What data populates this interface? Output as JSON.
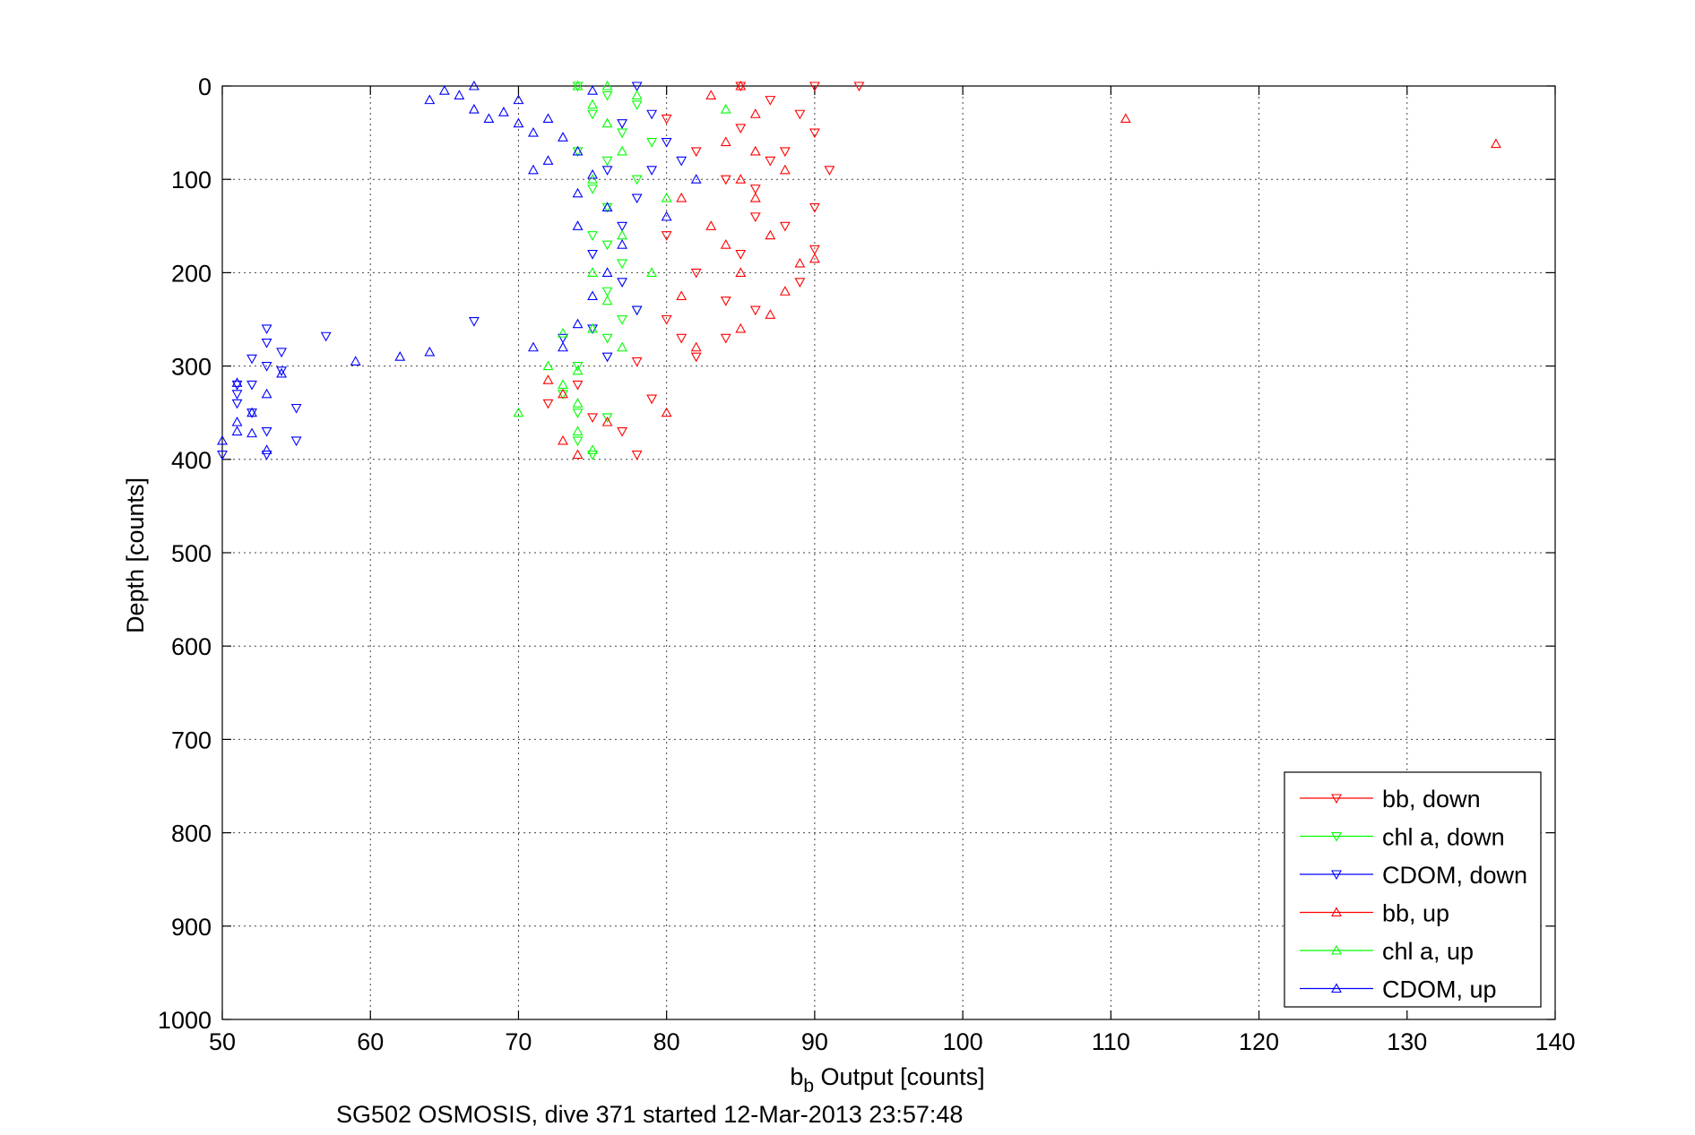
{
  "chart_data": {
    "type": "scatter",
    "title": "",
    "xlabel_main": "b",
    "xlabel_sub": "b",
    "xlabel_rest": " Output [counts]",
    "ylabel": "Depth [counts]",
    "caption": "SG502 OSMOSIS, dive 371 started 12-Mar-2013 23:57:48",
    "xlim": [
      50,
      140
    ],
    "ylim": [
      0,
      1000
    ],
    "y_reversed": true,
    "grid": true,
    "legend_position": "bottom-right",
    "x_ticks": [
      50,
      60,
      70,
      80,
      90,
      100,
      110,
      120,
      130,
      140
    ],
    "y_ticks": [
      0,
      100,
      200,
      300,
      400,
      500,
      600,
      700,
      800,
      900,
      1000
    ],
    "series": [
      {
        "name": "bb, down",
        "marker": "triangle-down",
        "color": "#ff0000",
        "points": [
          [
            85,
            0
          ],
          [
            87,
            15
          ],
          [
            89,
            30
          ],
          [
            90,
            50
          ],
          [
            88,
            70
          ],
          [
            91,
            90
          ],
          [
            86,
            110
          ],
          [
            90,
            130
          ],
          [
            88,
            150
          ],
          [
            85,
            180
          ],
          [
            90,
            175
          ],
          [
            89,
            210
          ],
          [
            86,
            240
          ],
          [
            84,
            270
          ],
          [
            82,
            290
          ],
          [
            78,
            295
          ],
          [
            74,
            320
          ],
          [
            72,
            340
          ],
          [
            79,
            335
          ],
          [
            75,
            355
          ],
          [
            77,
            370
          ],
          [
            78,
            395
          ],
          [
            80,
            35
          ],
          [
            82,
            70
          ],
          [
            84,
            100
          ],
          [
            86,
            140
          ],
          [
            80,
            160
          ],
          [
            82,
            200
          ],
          [
            84,
            230
          ],
          [
            80,
            250
          ],
          [
            81,
            270
          ],
          [
            93,
            0
          ],
          [
            90,
            0
          ],
          [
            85,
            45
          ],
          [
            87,
            80
          ]
        ]
      },
      {
        "name": "chl a, down",
        "marker": "triangle-down",
        "color": "#00ff00",
        "points": [
          [
            74,
            0
          ],
          [
            76,
            10
          ],
          [
            75,
            30
          ],
          [
            77,
            50
          ],
          [
            76,
            80
          ],
          [
            78,
            100
          ],
          [
            76,
            130
          ],
          [
            75,
            160
          ],
          [
            77,
            190
          ],
          [
            76,
            220
          ],
          [
            77,
            250
          ],
          [
            76,
            270
          ],
          [
            74,
            300
          ],
          [
            73,
            330
          ],
          [
            74,
            350
          ],
          [
            76,
            355
          ],
          [
            74,
            380
          ],
          [
            75,
            395
          ],
          [
            78,
            20
          ],
          [
            79,
            60
          ],
          [
            75,
            110
          ],
          [
            74,
            70
          ],
          [
            76,
            170
          ],
          [
            78,
            240
          ]
        ]
      },
      {
        "name": "CDOM, down",
        "marker": "triangle-down",
        "color": "#0000ff",
        "points": [
          [
            78,
            0
          ],
          [
            79,
            30
          ],
          [
            80,
            60
          ],
          [
            79,
            90
          ],
          [
            78,
            120
          ],
          [
            77,
            150
          ],
          [
            75,
            180
          ],
          [
            77,
            210
          ],
          [
            78,
            240
          ],
          [
            75,
            260
          ],
          [
            73,
            270
          ],
          [
            76,
            290
          ],
          [
            57,
            268
          ],
          [
            53,
            260
          ],
          [
            53,
            275
          ],
          [
            54,
            285
          ],
          [
            52,
            292
          ],
          [
            53,
            300
          ],
          [
            51,
            320
          ],
          [
            51,
            340
          ],
          [
            52,
            350
          ],
          [
            53,
            370
          ],
          [
            55,
            380
          ],
          [
            53,
            395
          ],
          [
            51,
            330
          ],
          [
            52,
            320
          ],
          [
            54,
            305
          ],
          [
            55,
            345
          ],
          [
            50,
            395
          ],
          [
            67,
            252
          ],
          [
            77,
            40
          ],
          [
            76,
            90
          ],
          [
            81,
            80
          ]
        ]
      },
      {
        "name": "bb, up",
        "marker": "triangle-up",
        "color": "#ff0000",
        "points": [
          [
            136,
            62
          ],
          [
            111,
            35
          ],
          [
            85,
            0
          ],
          [
            83,
            10
          ],
          [
            86,
            30
          ],
          [
            84,
            60
          ],
          [
            88,
            90
          ],
          [
            86,
            120
          ],
          [
            87,
            160
          ],
          [
            85,
            200
          ],
          [
            88,
            220
          ],
          [
            85,
            260
          ],
          [
            87,
            245
          ],
          [
            82,
            280
          ],
          [
            80,
            350
          ],
          [
            76,
            360
          ],
          [
            73,
            380
          ],
          [
            74,
            395
          ],
          [
            73,
            330
          ],
          [
            72,
            315
          ],
          [
            85,
            100
          ],
          [
            86,
            70
          ],
          [
            89,
            190
          ],
          [
            90,
            185
          ],
          [
            81,
            120
          ],
          [
            83,
            150
          ],
          [
            81,
            225
          ],
          [
            84,
            170
          ]
        ]
      },
      {
        "name": "chl a, up",
        "marker": "triangle-up",
        "color": "#00ff00",
        "points": [
          [
            74,
            0
          ],
          [
            75,
            20
          ],
          [
            76,
            40
          ],
          [
            77,
            70
          ],
          [
            75,
            100
          ],
          [
            76,
            130
          ],
          [
            77,
            160
          ],
          [
            75,
            200
          ],
          [
            76,
            230
          ],
          [
            75,
            260
          ],
          [
            77,
            280
          ],
          [
            72,
            300
          ],
          [
            73,
            320
          ],
          [
            74,
            340
          ],
          [
            70,
            350
          ],
          [
            74,
            370
          ],
          [
            75,
            390
          ],
          [
            76,
            0
          ],
          [
            78,
            10
          ],
          [
            80,
            120
          ],
          [
            84,
            25
          ],
          [
            79,
            200
          ],
          [
            73,
            265
          ],
          [
            74,
            305
          ]
        ]
      },
      {
        "name": "CDOM, up",
        "marker": "triangle-up",
        "color": "#0000ff",
        "points": [
          [
            64,
            15
          ],
          [
            65,
            5
          ],
          [
            66,
            10
          ],
          [
            67,
            0
          ],
          [
            67,
            25
          ],
          [
            68,
            35
          ],
          [
            69,
            28
          ],
          [
            70,
            40
          ],
          [
            71,
            50
          ],
          [
            72,
            80
          ],
          [
            72,
            35
          ],
          [
            73,
            55
          ],
          [
            74,
            70
          ],
          [
            75,
            95
          ],
          [
            74,
            115
          ],
          [
            76,
            130
          ],
          [
            74,
            150
          ],
          [
            77,
            170
          ],
          [
            76,
            200
          ],
          [
            75,
            225
          ],
          [
            74,
            255
          ],
          [
            73,
            280
          ],
          [
            71,
            280
          ],
          [
            62,
            290
          ],
          [
            64,
            285
          ],
          [
            59,
            295
          ],
          [
            53,
            330
          ],
          [
            52,
            350
          ],
          [
            51,
            360
          ],
          [
            50,
            380
          ],
          [
            51,
            370
          ],
          [
            52,
            372
          ],
          [
            53,
            390
          ],
          [
            54,
            308
          ],
          [
            51,
            318
          ],
          [
            70,
            15
          ],
          [
            71,
            90
          ],
          [
            75,
            5
          ],
          [
            82,
            100
          ],
          [
            80,
            140
          ]
        ]
      }
    ]
  }
}
